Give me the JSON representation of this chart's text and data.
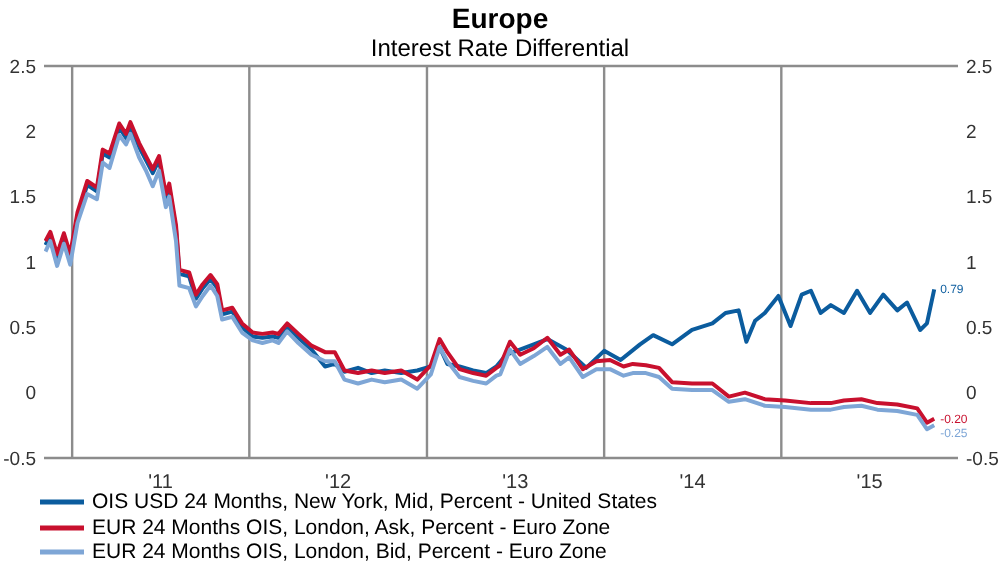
{
  "chart_data": {
    "type": "line",
    "title": "Europe",
    "subtitle": "Interest Rate Differential",
    "xlim": [
      "2010-11-04",
      "2015-12-31"
    ],
    "xticks": [
      {
        "value": "2011-01-01",
        "label": null
      },
      {
        "value": "2011-07-02",
        "label": "'11"
      },
      {
        "value": "2012-01-01",
        "label": null
      },
      {
        "value": "2012-07-02",
        "label": "'12"
      },
      {
        "value": "2013-01-01",
        "label": null
      },
      {
        "value": "2013-07-02",
        "label": "'13"
      },
      {
        "value": "2014-01-01",
        "label": null
      },
      {
        "value": "2014-07-02",
        "label": "'14"
      },
      {
        "value": "2015-01-01",
        "label": null
      },
      {
        "value": "2015-07-02",
        "label": "'15"
      }
    ],
    "ylim": [
      -0.5,
      2.5
    ],
    "yticks": [
      -0.5,
      0,
      0.5,
      1,
      1.5,
      2,
      2.5
    ],
    "y2lim": [
      -0.5,
      2.5
    ],
    "y2ticks": [
      -0.5,
      0,
      0.5,
      1,
      1.5,
      2,
      2.5
    ],
    "grid": true,
    "legend": "bottom left",
    "marker": "none",
    "line_style": "solid",
    "annotations": [
      {
        "text": "0.79",
        "x": "2015-11-12",
        "y": 0.79
      },
      {
        "text": "-0.20",
        "x": "2015-11-12",
        "y": -0.2
      },
      {
        "text": "-0.25",
        "x": "2015-11-12",
        "y": -0.25
      }
    ],
    "series": [
      {
        "name": "OIS USD 24 Months, New York, Mid, Percent - United States",
        "color": "#0b5c9e",
        "x": [
          "2010-11-07",
          "2010-11-17",
          "2010-12-01",
          "2010-12-15",
          "2010-12-28",
          "2011-01-12",
          "2011-02-01",
          "2011-02-21",
          "2011-03-05",
          "2011-03-19",
          "2011-04-08",
          "2011-04-22",
          "2011-05-01",
          "2011-05-19",
          "2011-06-02",
          "2011-06-16",
          "2011-06-29",
          "2011-07-13",
          "2011-07-20",
          "2011-08-03",
          "2011-08-10",
          "2011-08-30",
          "2011-09-13",
          "2011-09-27",
          "2011-10-13",
          "2011-10-27",
          "2011-11-06",
          "2011-11-27",
          "2011-12-17",
          "2012-01-08",
          "2012-01-28",
          "2012-02-18",
          "2012-03-01",
          "2012-03-19",
          "2012-04-11",
          "2012-05-08",
          "2012-06-05",
          "2012-06-25",
          "2012-07-15",
          "2012-08-12",
          "2012-09-09",
          "2012-10-06",
          "2012-11-09",
          "2012-12-12",
          "2013-01-09",
          "2013-01-27",
          "2013-02-12",
          "2013-03-09",
          "2013-04-06",
          "2013-05-03",
          "2013-05-24",
          "2013-06-13",
          "2013-08-09",
          "2013-09-06",
          "2013-10-15",
          "2013-11-25",
          "2014-01-01",
          "2014-02-04",
          "2014-03-16",
          "2014-04-12",
          "2014-05-21",
          "2014-07-01",
          "2014-08-12",
          "2014-09-08",
          "2014-10-05",
          "2014-10-21",
          "2014-11-08",
          "2014-11-28",
          "2014-12-26",
          "2015-01-20",
          "2015-02-12",
          "2015-03-03",
          "2015-03-23",
          "2015-04-13",
          "2015-05-10",
          "2015-06-06",
          "2015-07-03",
          "2015-07-30",
          "2015-08-28",
          "2015-09-17",
          "2015-10-14",
          "2015-10-28",
          "2015-11-12"
        ],
        "values": [
          1.13,
          1.2,
          1.03,
          1.19,
          1.03,
          1.35,
          1.59,
          1.54,
          1.83,
          1.8,
          2.03,
          1.95,
          2.04,
          1.88,
          1.78,
          1.68,
          1.78,
          1.49,
          1.57,
          1.25,
          0.91,
          0.89,
          0.72,
          0.8,
          0.87,
          0.8,
          0.6,
          0.62,
          0.5,
          0.43,
          0.42,
          0.43,
          0.42,
          0.5,
          0.42,
          0.33,
          0.2,
          0.22,
          0.16,
          0.19,
          0.15,
          0.17,
          0.15,
          0.17,
          0.2,
          0.35,
          0.22,
          0.2,
          0.17,
          0.15,
          0.2,
          0.29,
          0.37,
          0.41,
          0.33,
          0.19,
          0.32,
          0.25,
          0.37,
          0.44,
          0.37,
          0.48,
          0.53,
          0.61,
          0.63,
          0.39,
          0.55,
          0.61,
          0.74,
          0.51,
          0.75,
          0.78,
          0.61,
          0.67,
          0.61,
          0.78,
          0.61,
          0.75,
          0.63,
          0.69,
          0.48,
          0.53,
          0.79
        ]
      },
      {
        "name": "EUR 24 Months OIS, London, Ask, Percent - Euro Zone",
        "color": "#c8102e",
        "x": [
          "2010-11-07",
          "2010-11-17",
          "2010-12-01",
          "2010-12-15",
          "2010-12-28",
          "2011-01-12",
          "2011-02-01",
          "2011-02-21",
          "2011-03-05",
          "2011-03-19",
          "2011-04-08",
          "2011-04-22",
          "2011-05-01",
          "2011-05-19",
          "2011-06-02",
          "2011-06-16",
          "2011-06-29",
          "2011-07-13",
          "2011-07-20",
          "2011-08-03",
          "2011-08-10",
          "2011-08-30",
          "2011-09-13",
          "2011-09-27",
          "2011-10-13",
          "2011-10-27",
          "2011-11-06",
          "2011-11-27",
          "2011-12-17",
          "2012-01-08",
          "2012-01-28",
          "2012-02-18",
          "2012-03-01",
          "2012-03-19",
          "2012-04-11",
          "2012-05-08",
          "2012-06-05",
          "2012-06-25",
          "2012-07-15",
          "2012-08-12",
          "2012-09-09",
          "2012-10-06",
          "2012-11-09",
          "2012-12-12",
          "2013-01-09",
          "2013-01-27",
          "2013-02-12",
          "2013-03-09",
          "2013-04-06",
          "2013-05-03",
          "2013-05-24",
          "2013-06-01",
          "2013-06-21",
          "2013-07-12",
          "2013-08-09",
          "2013-09-06",
          "2013-10-03",
          "2013-10-21",
          "2013-11-18",
          "2013-12-16",
          "2014-01-13",
          "2014-02-10",
          "2014-03-01",
          "2014-03-28",
          "2014-04-24",
          "2014-05-21",
          "2014-07-01",
          "2014-08-12",
          "2014-09-15",
          "2014-10-18",
          "2014-11-28",
          "2015-01-09",
          "2015-03-03",
          "2015-04-13",
          "2015-05-10",
          "2015-06-15",
          "2015-07-18",
          "2015-08-28",
          "2015-10-08",
          "2015-10-28",
          "2015-11-12"
        ],
        "values": [
          1.16,
          1.23,
          1.06,
          1.22,
          1.06,
          1.38,
          1.62,
          1.57,
          1.86,
          1.83,
          2.06,
          1.98,
          2.07,
          1.91,
          1.81,
          1.71,
          1.81,
          1.52,
          1.6,
          1.28,
          0.94,
          0.92,
          0.75,
          0.83,
          0.9,
          0.83,
          0.63,
          0.65,
          0.53,
          0.46,
          0.45,
          0.46,
          0.45,
          0.53,
          0.45,
          0.36,
          0.31,
          0.31,
          0.17,
          0.15,
          0.17,
          0.15,
          0.17,
          0.1,
          0.21,
          0.41,
          0.31,
          0.18,
          0.15,
          0.13,
          0.19,
          0.21,
          0.39,
          0.29,
          0.34,
          0.42,
          0.29,
          0.33,
          0.18,
          0.24,
          0.25,
          0.2,
          0.22,
          0.21,
          0.19,
          0.08,
          0.07,
          0.07,
          -0.03,
          0,
          -0.05,
          -0.06,
          -0.08,
          -0.08,
          -0.06,
          -0.05,
          -0.08,
          -0.09,
          -0.12,
          -0.23,
          -0.2
        ]
      },
      {
        "name": "EUR 24 Months OIS, London, Bid, Percent - Euro Zone",
        "color": "#7ea6d6",
        "x": [
          "2010-11-07",
          "2010-11-17",
          "2010-12-01",
          "2010-12-15",
          "2010-12-28",
          "2011-01-12",
          "2011-02-01",
          "2011-02-21",
          "2011-03-05",
          "2011-03-19",
          "2011-04-08",
          "2011-04-22",
          "2011-05-01",
          "2011-05-19",
          "2011-06-02",
          "2011-06-16",
          "2011-06-29",
          "2011-07-13",
          "2011-07-20",
          "2011-08-03",
          "2011-08-10",
          "2011-08-30",
          "2011-09-13",
          "2011-09-27",
          "2011-10-13",
          "2011-10-27",
          "2011-11-06",
          "2011-11-27",
          "2011-12-17",
          "2012-01-08",
          "2012-01-28",
          "2012-02-18",
          "2012-03-01",
          "2012-03-19",
          "2012-04-11",
          "2012-05-08",
          "2012-06-05",
          "2012-06-25",
          "2012-07-15",
          "2012-08-12",
          "2012-09-09",
          "2012-10-06",
          "2012-11-09",
          "2012-12-12",
          "2013-01-09",
          "2013-01-27",
          "2013-02-12",
          "2013-03-09",
          "2013-04-06",
          "2013-05-03",
          "2013-05-24",
          "2013-06-01",
          "2013-06-21",
          "2013-07-12",
          "2013-08-09",
          "2013-09-06",
          "2013-10-03",
          "2013-10-21",
          "2013-11-18",
          "2013-12-16",
          "2014-01-13",
          "2014-02-10",
          "2014-03-01",
          "2014-03-28",
          "2014-04-24",
          "2014-05-21",
          "2014-07-01",
          "2014-08-12",
          "2014-09-15",
          "2014-10-18",
          "2014-11-28",
          "2015-01-09",
          "2015-03-03",
          "2015-04-13",
          "2015-05-10",
          "2015-06-15",
          "2015-07-18",
          "2015-08-28",
          "2015-10-08",
          "2015-10-28",
          "2015-11-12"
        ],
        "values": [
          1.08,
          1.16,
          0.97,
          1.14,
          0.98,
          1.3,
          1.52,
          1.48,
          1.76,
          1.72,
          1.97,
          1.9,
          1.98,
          1.8,
          1.7,
          1.58,
          1.7,
          1.42,
          1.5,
          1.16,
          0.82,
          0.8,
          0.66,
          0.74,
          0.82,
          0.74,
          0.56,
          0.58,
          0.46,
          0.4,
          0.38,
          0.4,
          0.38,
          0.47,
          0.38,
          0.29,
          0.24,
          0.24,
          0.1,
          0.07,
          0.1,
          0.08,
          0.1,
          0.03,
          0.14,
          0.35,
          0.24,
          0.12,
          0.09,
          0.07,
          0.13,
          0.14,
          0.33,
          0.22,
          0.28,
          0.35,
          0.22,
          0.27,
          0.12,
          0.18,
          0.18,
          0.13,
          0.15,
          0.15,
          0.12,
          0.03,
          0.02,
          0.02,
          -0.07,
          -0.05,
          -0.1,
          -0.11,
          -0.13,
          -0.13,
          -0.11,
          -0.1,
          -0.13,
          -0.14,
          -0.17,
          -0.28,
          -0.25
        ]
      }
    ]
  }
}
